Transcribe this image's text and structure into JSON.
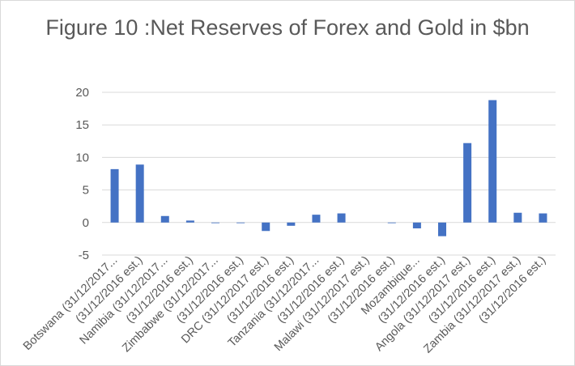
{
  "chart_data": {
    "type": "bar",
    "title": "Figure 10 :Net Reserves of Forex and Gold in $bn",
    "categories": [
      "Botswana (31/12/2017...",
      "(31/12/2016 est.)",
      "Namibia (31/12/2017...",
      "(31/12/2016 est.)",
      "Zimbabwe (31/12/2017...",
      "(31/12/2016 est.)",
      "DRC (31/12/2017 est.)",
      "(31/12/2016 est.)",
      "Tanzania (31/12/2017...",
      "(31/12/2016 est.)",
      "Malawi (31/12/2017 est.)",
      "(31/12/2016 est.)",
      "Mozambique...",
      "(31/12/2016 est.)",
      "Angola (31/12/2017 est.)",
      "(31/12/2016 est.)",
      "Zambia (31/12/2017 est.)",
      "(31/12/2016 est.)"
    ],
    "series": [
      {
        "values": [
          8.2,
          8.9,
          1.0,
          0.3,
          -0.1,
          -0.1,
          -1.3,
          -0.5,
          1.2,
          1.4,
          0.0,
          -0.1,
          -0.9,
          -2.1,
          12.2,
          18.8,
          1.5,
          1.4
        ]
      }
    ],
    "xlabel": "",
    "ylabel": "",
    "ylim": [
      -5,
      20
    ],
    "yticks": [
      20,
      15,
      10,
      5,
      0,
      -5
    ],
    "grid": true,
    "legend": "none",
    "bar_color": "#4472c4",
    "grid_color": "#d9d9d9",
    "text_color": "#595959"
  }
}
